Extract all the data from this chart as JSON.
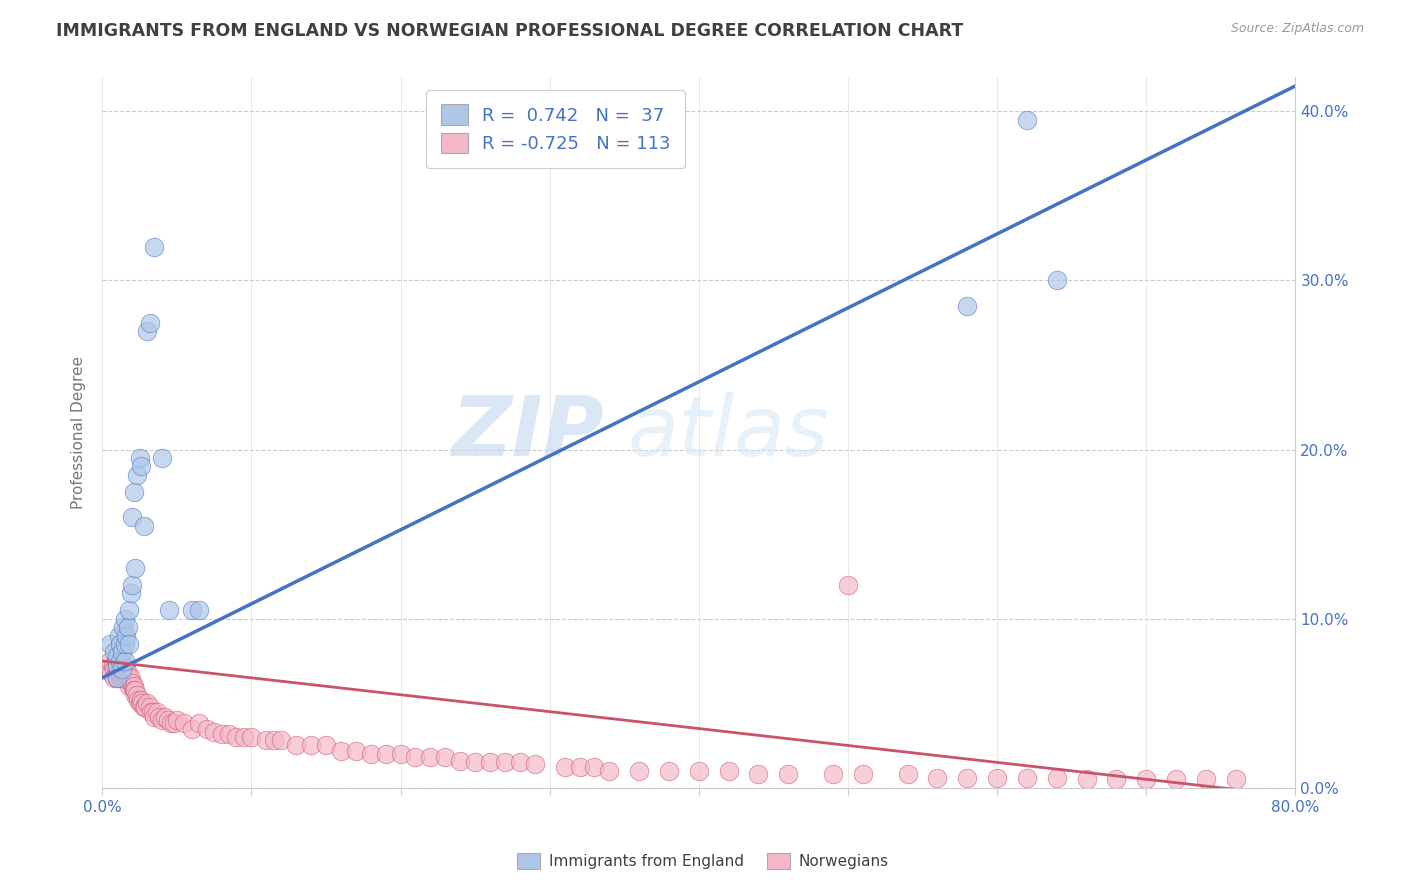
{
  "title": "IMMIGRANTS FROM ENGLAND VS NORWEGIAN PROFESSIONAL DEGREE CORRELATION CHART",
  "source": "Source: ZipAtlas.com",
  "ylabel": "Professional Degree",
  "legend_england": "Immigrants from England",
  "legend_norwegian": "Norwegians",
  "r_england": 0.742,
  "n_england": 37,
  "r_norwegian": -0.725,
  "n_norwegian": 113,
  "england_color": "#aec6e8",
  "england_line_color": "#4472c4",
  "norwegian_color": "#f4b8c8",
  "norwegian_line_color": "#c9536a",
  "watermark_zip": "ZIP",
  "watermark_atlas": "atlas",
  "title_color": "#404040",
  "axis_label_color": "#4472c4",
  "england_scatter_x": [
    0.005,
    0.008,
    0.01,
    0.01,
    0.01,
    0.011,
    0.012,
    0.012,
    0.013,
    0.013,
    0.014,
    0.015,
    0.015,
    0.015,
    0.016,
    0.017,
    0.018,
    0.018,
    0.019,
    0.02,
    0.02,
    0.021,
    0.022,
    0.023,
    0.025,
    0.026,
    0.028,
    0.03,
    0.032,
    0.035,
    0.04,
    0.045,
    0.06,
    0.065,
    0.62,
    0.64,
    0.58
  ],
  "england_scatter_y": [
    0.085,
    0.08,
    0.072,
    0.078,
    0.065,
    0.09,
    0.075,
    0.085,
    0.07,
    0.08,
    0.095,
    0.075,
    0.1,
    0.085,
    0.09,
    0.095,
    0.105,
    0.085,
    0.115,
    0.12,
    0.16,
    0.175,
    0.13,
    0.185,
    0.195,
    0.19,
    0.155,
    0.27,
    0.275,
    0.32,
    0.195,
    0.105,
    0.105,
    0.105,
    0.395,
    0.3,
    0.285
  ],
  "norwegian_scatter_x": [
    0.003,
    0.005,
    0.006,
    0.007,
    0.008,
    0.008,
    0.009,
    0.009,
    0.01,
    0.01,
    0.01,
    0.011,
    0.011,
    0.012,
    0.012,
    0.012,
    0.013,
    0.013,
    0.013,
    0.014,
    0.014,
    0.015,
    0.015,
    0.015,
    0.016,
    0.016,
    0.017,
    0.017,
    0.018,
    0.018,
    0.019,
    0.019,
    0.02,
    0.02,
    0.021,
    0.021,
    0.022,
    0.022,
    0.023,
    0.024,
    0.025,
    0.026,
    0.027,
    0.028,
    0.029,
    0.03,
    0.032,
    0.033,
    0.034,
    0.035,
    0.037,
    0.038,
    0.04,
    0.042,
    0.044,
    0.046,
    0.048,
    0.05,
    0.055,
    0.06,
    0.065,
    0.07,
    0.075,
    0.08,
    0.085,
    0.09,
    0.095,
    0.1,
    0.11,
    0.115,
    0.12,
    0.13,
    0.14,
    0.15,
    0.16,
    0.17,
    0.18,
    0.19,
    0.2,
    0.21,
    0.22,
    0.23,
    0.24,
    0.25,
    0.26,
    0.27,
    0.28,
    0.29,
    0.31,
    0.32,
    0.33,
    0.34,
    0.36,
    0.38,
    0.4,
    0.42,
    0.44,
    0.46,
    0.49,
    0.51,
    0.54,
    0.56,
    0.58,
    0.6,
    0.62,
    0.64,
    0.66,
    0.68,
    0.7,
    0.72,
    0.74,
    0.76,
    0.5
  ],
  "norwegian_scatter_y": [
    0.07,
    0.075,
    0.068,
    0.072,
    0.065,
    0.07,
    0.068,
    0.075,
    0.065,
    0.07,
    0.072,
    0.068,
    0.075,
    0.065,
    0.068,
    0.072,
    0.065,
    0.07,
    0.068,
    0.065,
    0.07,
    0.068,
    0.065,
    0.072,
    0.065,
    0.07,
    0.065,
    0.068,
    0.065,
    0.06,
    0.062,
    0.065,
    0.06,
    0.062,
    0.06,
    0.058,
    0.055,
    0.058,
    0.055,
    0.052,
    0.05,
    0.052,
    0.05,
    0.048,
    0.048,
    0.05,
    0.048,
    0.045,
    0.045,
    0.042,
    0.045,
    0.042,
    0.04,
    0.042,
    0.04,
    0.038,
    0.038,
    0.04,
    0.038,
    0.035,
    0.038,
    0.035,
    0.033,
    0.032,
    0.032,
    0.03,
    0.03,
    0.03,
    0.028,
    0.028,
    0.028,
    0.025,
    0.025,
    0.025,
    0.022,
    0.022,
    0.02,
    0.02,
    0.02,
    0.018,
    0.018,
    0.018,
    0.016,
    0.015,
    0.015,
    0.015,
    0.015,
    0.014,
    0.012,
    0.012,
    0.012,
    0.01,
    0.01,
    0.01,
    0.01,
    0.01,
    0.008,
    0.008,
    0.008,
    0.008,
    0.008,
    0.006,
    0.006,
    0.006,
    0.006,
    0.006,
    0.005,
    0.005,
    0.005,
    0.005,
    0.005,
    0.005,
    0.12
  ],
  "xmin": 0.0,
  "xmax": 0.8,
  "ymin": 0.0,
  "ymax": 0.42
}
